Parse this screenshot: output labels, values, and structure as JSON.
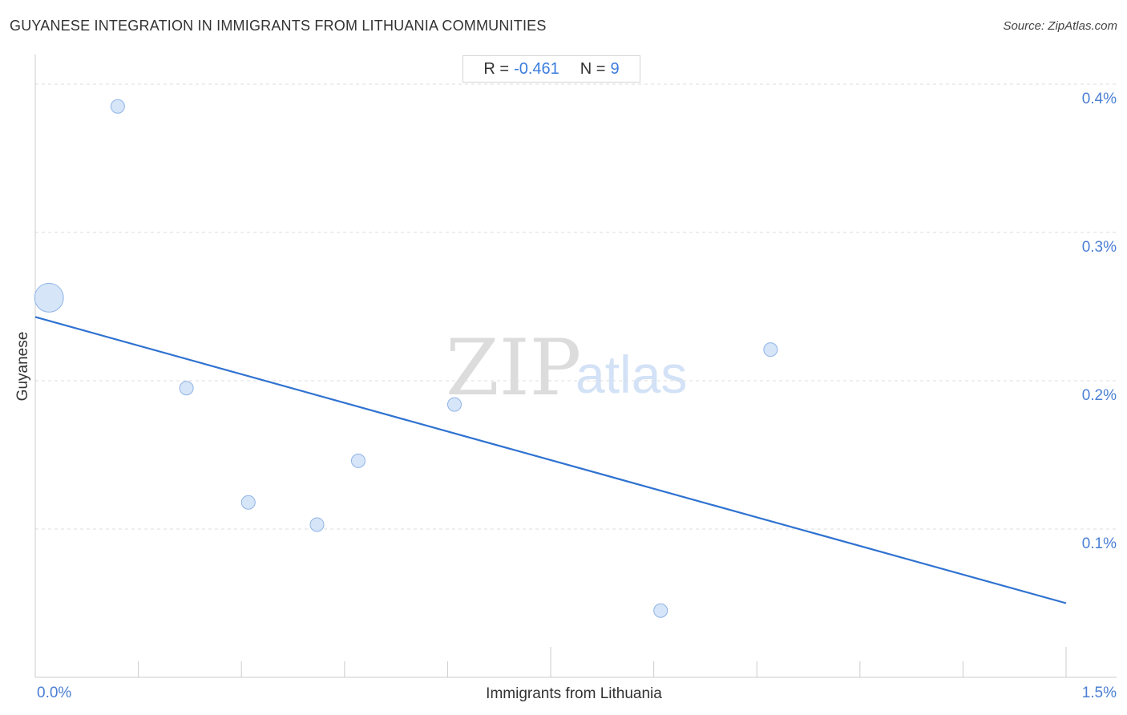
{
  "header": {
    "title": "GUYANESE INTEGRATION IN IMMIGRANTS FROM LITHUANIA COMMUNITIES",
    "source": "Source: ZipAtlas.com"
  },
  "stats": {
    "r_label": "R =",
    "r_value": "-0.461",
    "n_label": "N =",
    "n_value": "9"
  },
  "watermark": {
    "zip": "ZIP",
    "atlas": "atlas"
  },
  "colors": {
    "point_fill": "#cfe0f7",
    "point_stroke": "#8fb4e8",
    "trend_line": "#2f72d0",
    "tick_text": "#4a7fd4"
  },
  "chart_data": {
    "type": "scatter",
    "title": "GUYANESE INTEGRATION IN IMMIGRANTS FROM LITHUANIA COMMUNITIES",
    "xlabel": "Immigrants from Lithuania",
    "ylabel": "Guyanese",
    "xlim": [
      0.0,
      1.5
    ],
    "ylim": [
      0.0,
      0.42
    ],
    "x_tick_labels": [
      {
        "value": 0.0,
        "label": "0.0%"
      },
      {
        "value": 1.5,
        "label": "1.5%"
      }
    ],
    "y_tick_labels": [
      {
        "value": 0.1,
        "label": "0.1%"
      },
      {
        "value": 0.2,
        "label": "0.2%"
      },
      {
        "value": 0.3,
        "label": "0.3%"
      },
      {
        "value": 0.4,
        "label": "0.4%"
      }
    ],
    "grid": true,
    "points": [
      {
        "x": 0.02,
        "y": 0.256,
        "size": "large"
      },
      {
        "x": 0.12,
        "y": 0.385,
        "size": "small"
      },
      {
        "x": 0.22,
        "y": 0.195,
        "size": "small"
      },
      {
        "x": 0.31,
        "y": 0.118,
        "size": "small"
      },
      {
        "x": 0.41,
        "y": 0.103,
        "size": "small"
      },
      {
        "x": 0.47,
        "y": 0.146,
        "size": "small"
      },
      {
        "x": 0.61,
        "y": 0.184,
        "size": "small"
      },
      {
        "x": 0.91,
        "y": 0.045,
        "size": "small"
      },
      {
        "x": 1.07,
        "y": 0.221,
        "size": "small"
      }
    ],
    "trend_line": {
      "x": [
        0.0,
        1.5
      ],
      "y": [
        0.243,
        0.05
      ]
    },
    "stats": {
      "R": -0.461,
      "N": 9
    }
  }
}
